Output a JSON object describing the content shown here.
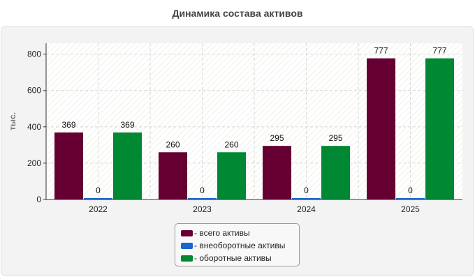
{
  "chart_data": {
    "type": "bar",
    "title": "Динамика состава активов",
    "xlabel": "",
    "ylabel": "тыс.",
    "categories": [
      "2022",
      "2023",
      "2024",
      "2025"
    ],
    "series": [
      {
        "name": "всего активы",
        "values": [
          369,
          260,
          295,
          777
        ],
        "color": "#660033"
      },
      {
        "name": "внеоборотные активы",
        "values": [
          0,
          0,
          0,
          0
        ],
        "color": "#1a66cc"
      },
      {
        "name": "оборотные активы",
        "values": [
          369,
          260,
          295,
          777
        ],
        "color": "#008833"
      }
    ],
    "ylim": [
      0,
      860
    ],
    "yticks": [
      0,
      200,
      400,
      600,
      800
    ],
    "grid": true,
    "legend_position": "bottom"
  },
  "legend": {
    "prefix": "- "
  }
}
